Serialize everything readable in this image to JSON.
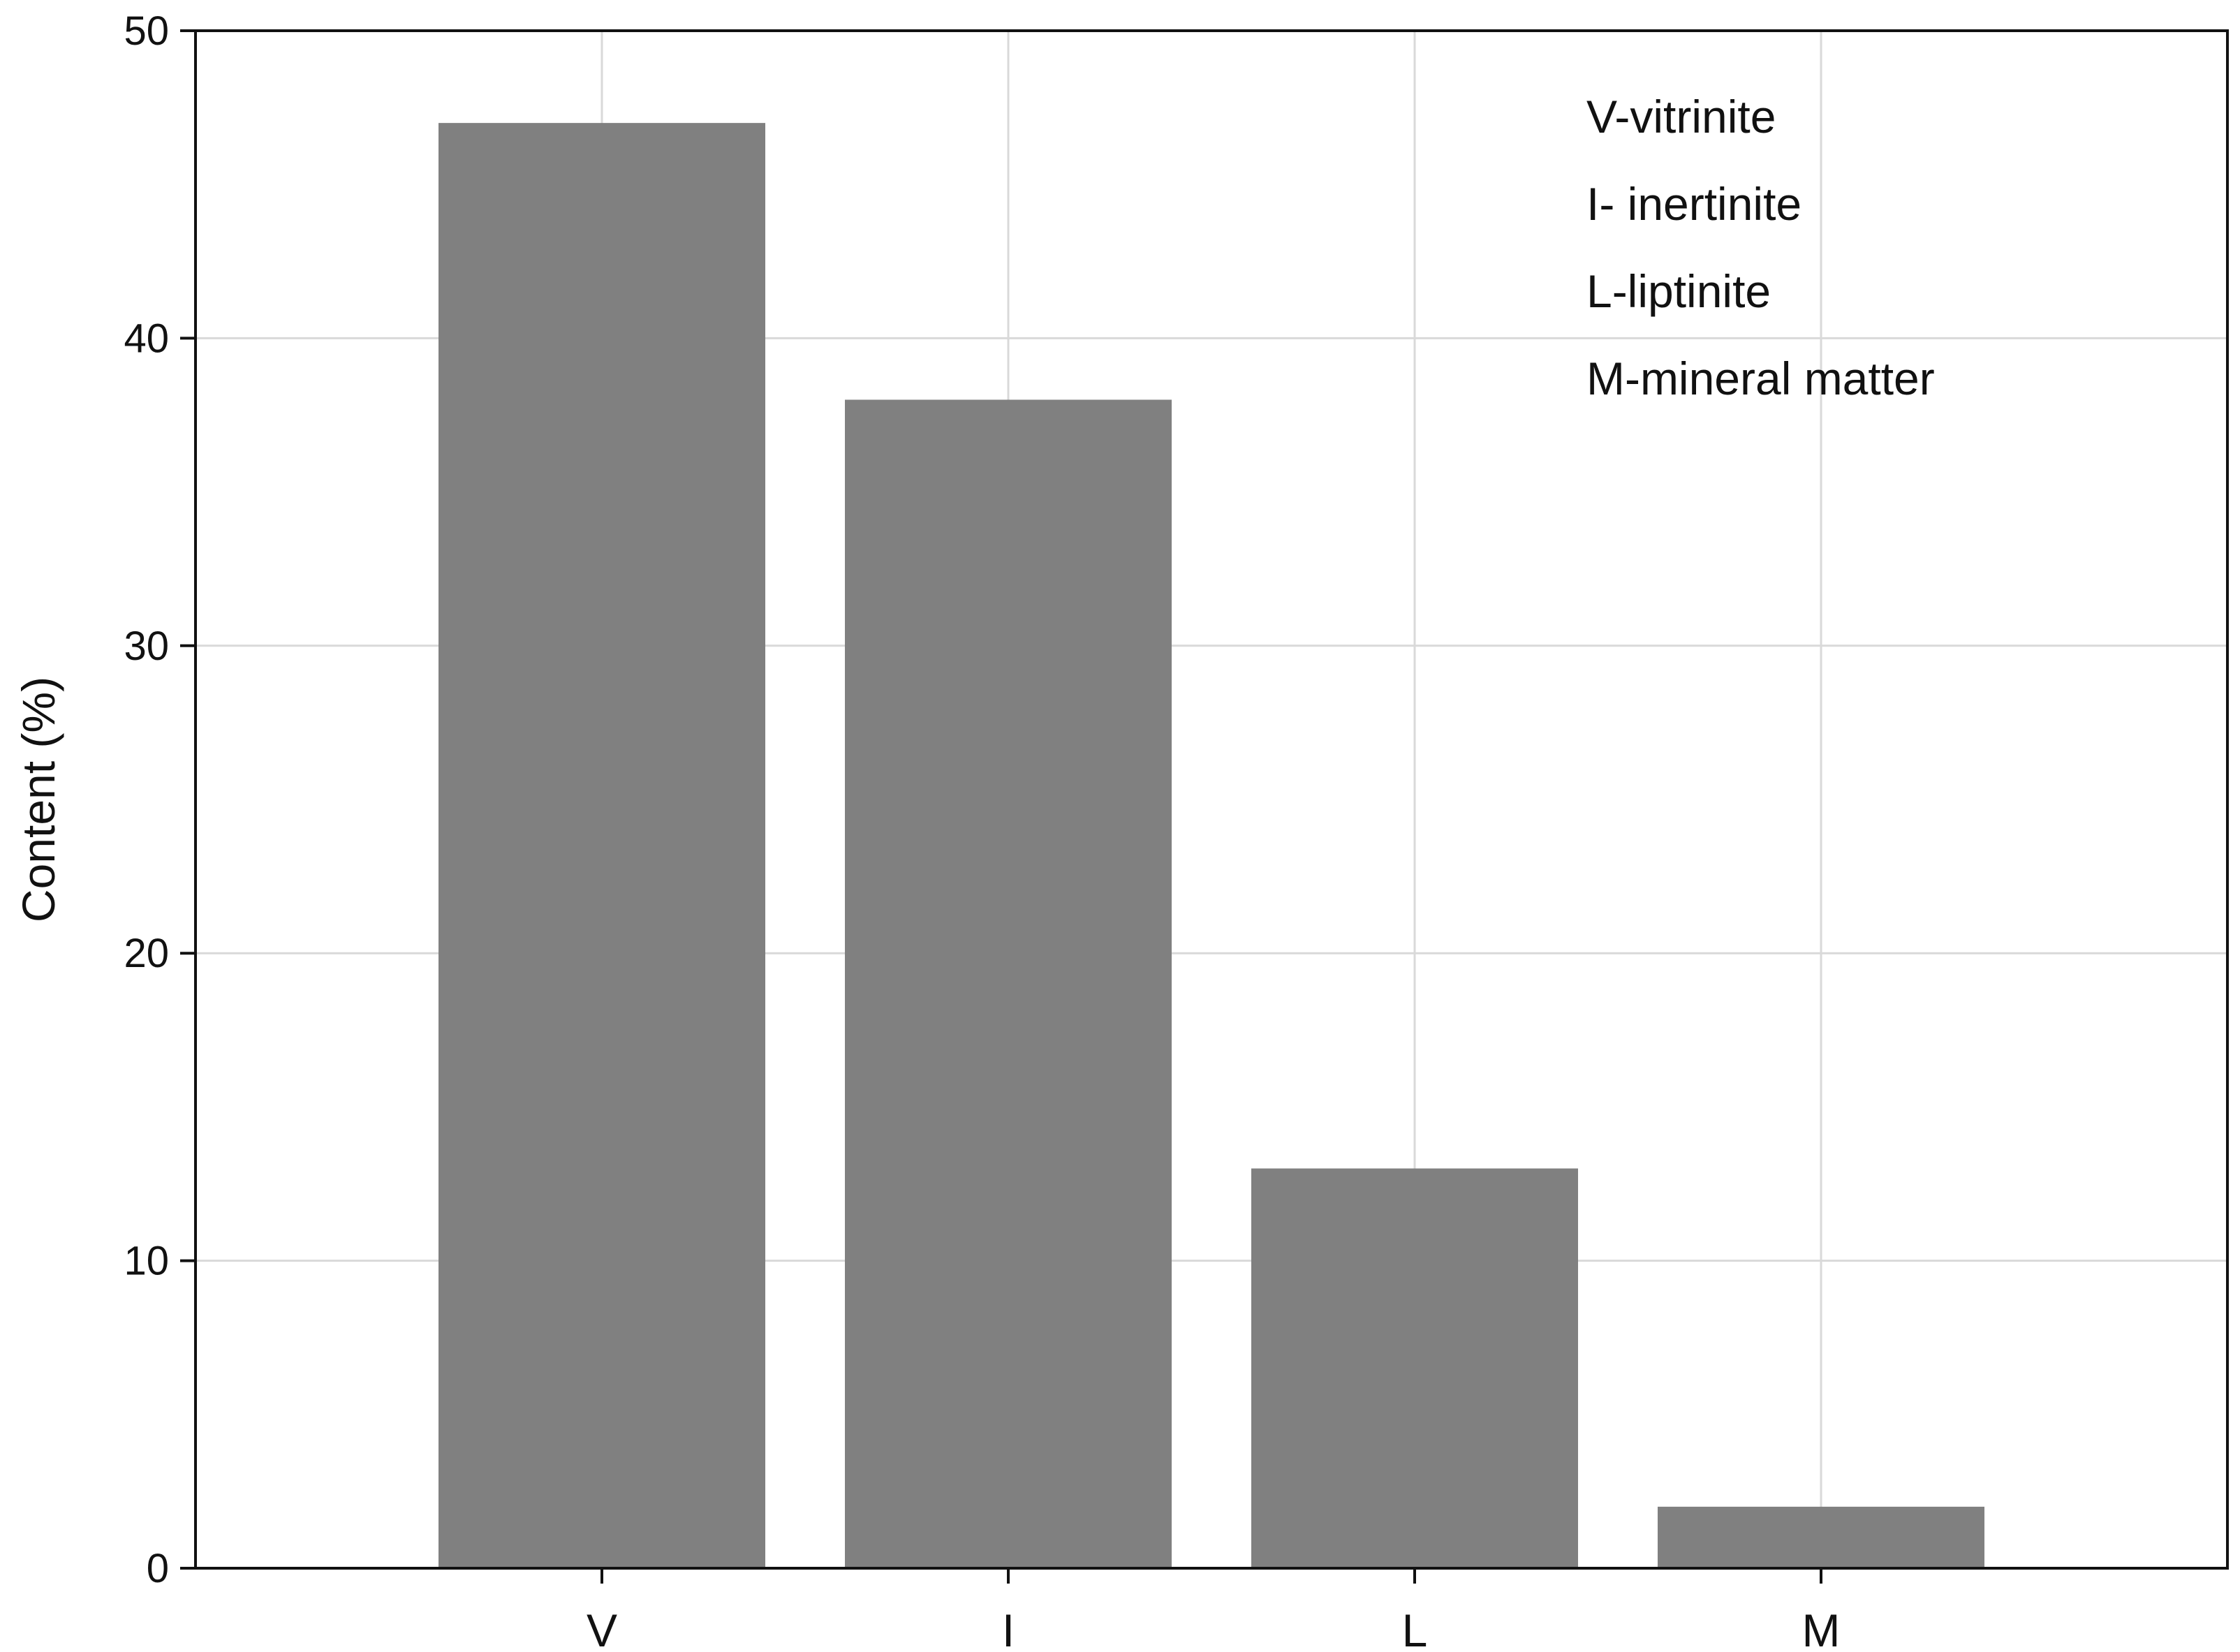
{
  "chart_data": {
    "type": "bar",
    "categories": [
      "V",
      "I",
      "L",
      "M"
    ],
    "values": [
      47,
      38,
      13,
      2
    ],
    "title": "",
    "xlabel": "",
    "ylabel": "Content (%)",
    "ylim": [
      0,
      50
    ],
    "yticks": [
      0,
      10,
      20,
      30,
      40,
      50
    ],
    "grid": true,
    "bar_color": "#808080",
    "annotations": [
      "V-vitrinite",
      "I- inertinite",
      "L-liptinite",
      "M-mineral matter"
    ],
    "annotation_placement": "top-right"
  }
}
